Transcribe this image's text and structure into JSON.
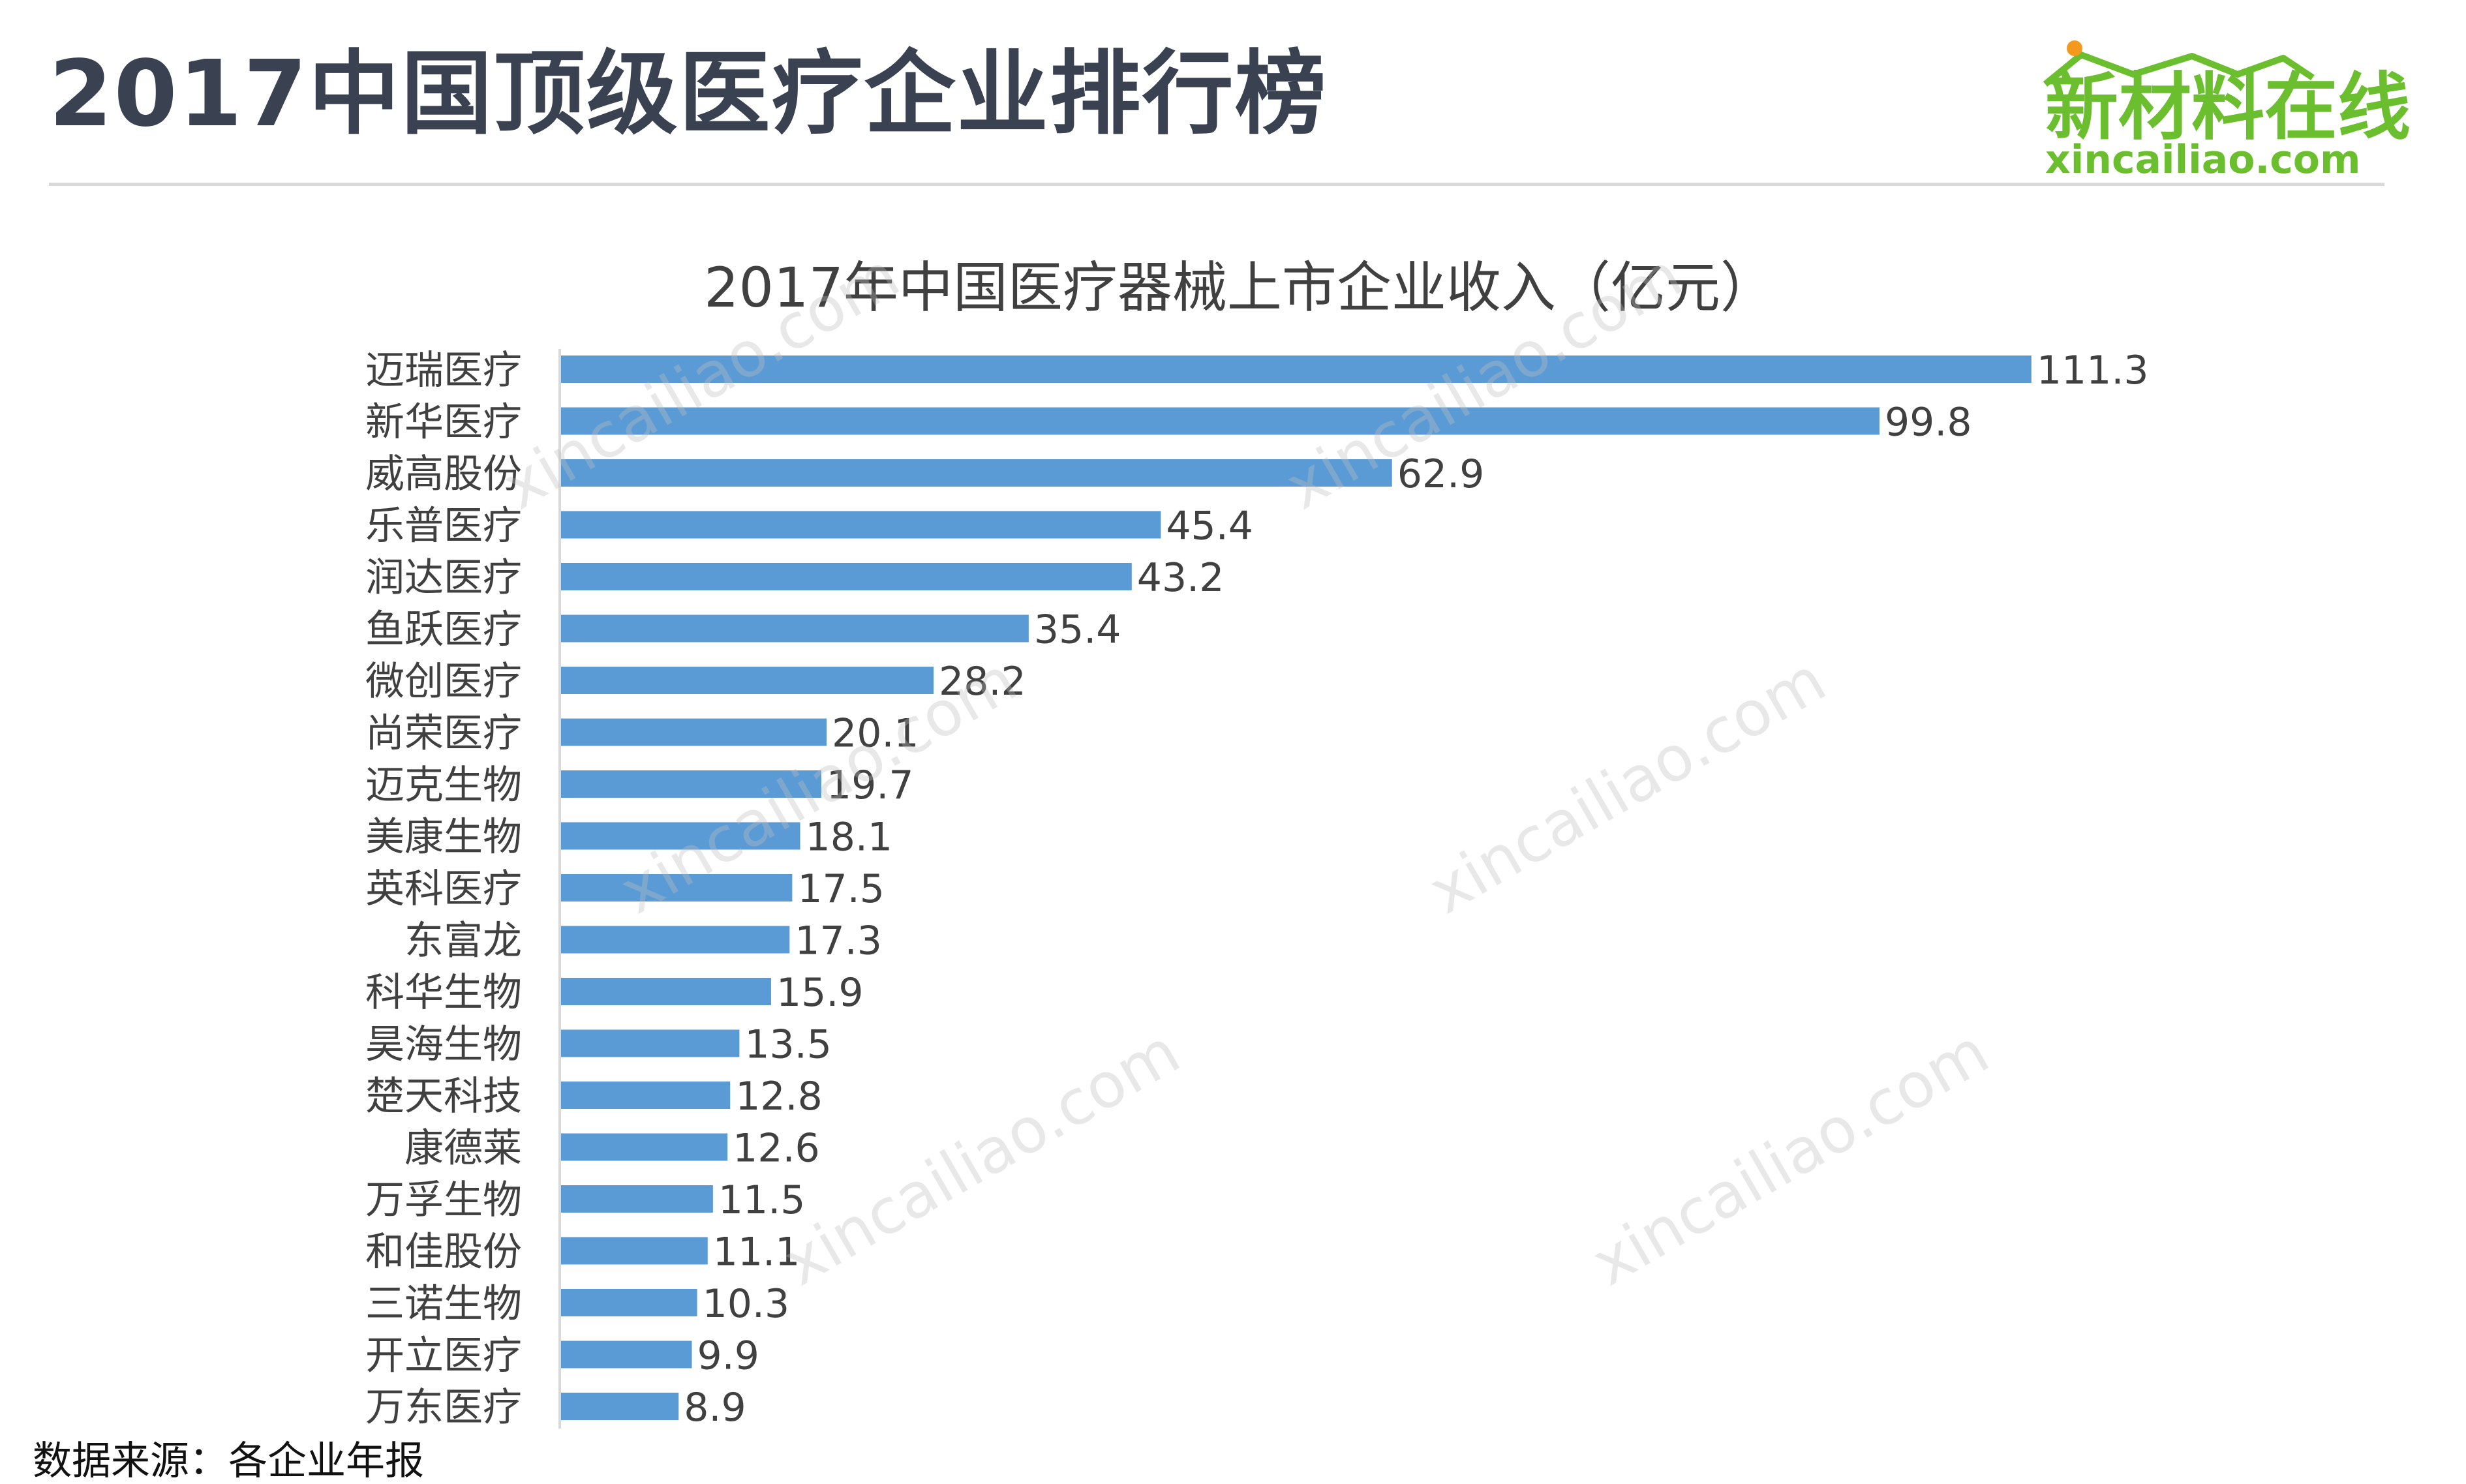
{
  "header": {
    "title": "2017中国顶级医疗企业排行榜"
  },
  "logo": {
    "name": "新材料在线",
    "domain": "xincailiao.com"
  },
  "watermark_text": "xincailiao.com",
  "source": "数据来源：各企业年报",
  "colors": {
    "bar": "#5b9bd5",
    "title": "#3a4150",
    "logo": "#6bbf2f",
    "logo_dot": "#f39a1e"
  },
  "chart_data": {
    "type": "bar",
    "orientation": "horizontal",
    "title": "2017年中国医疗器械上市企业收入（亿元）",
    "categories": [
      "迈瑞医疗",
      "新华医疗",
      "威高股份",
      "乐普医疗",
      "润达医疗",
      "鱼跃医疗",
      "微创医疗",
      "尚荣医疗",
      "迈克生物",
      "美康生物",
      "英科医疗",
      "东富龙",
      "科华生物",
      "昊海生物",
      "楚天科技",
      "康德莱",
      "万孚生物",
      "和佳股份",
      "三诺生物",
      "开立医疗",
      "万东医疗"
    ],
    "values": [
      111.3,
      99.8,
      62.9,
      45.4,
      43.2,
      35.4,
      28.2,
      20.1,
      19.7,
      18.1,
      17.5,
      17.3,
      15.9,
      13.5,
      12.8,
      12.6,
      11.5,
      11.1,
      10.3,
      9.9,
      8.9
    ],
    "value_labels": [
      "111.3",
      "99.8",
      "62.9",
      "45.4",
      "43.2",
      "35.4",
      "28.2",
      "20.1",
      "19.7",
      "18.1",
      "17.5",
      "17.3",
      "15.9",
      "13.5",
      "12.8",
      "12.6",
      "11.5",
      "11.1",
      "10.3",
      "9.9",
      "8.9"
    ],
    "data_labels": true,
    "grid": false,
    "legend": "none"
  }
}
